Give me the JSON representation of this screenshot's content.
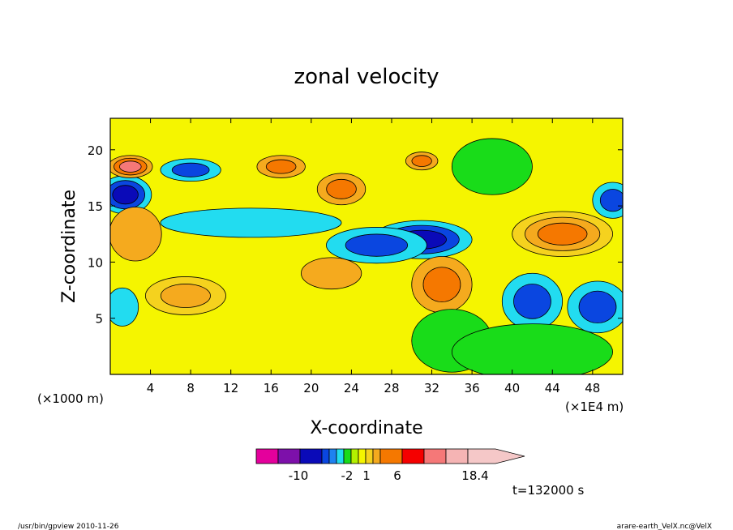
{
  "chart_data": {
    "type": "heatmap",
    "title": "zonal velocity",
    "xlabel": "X-coordinate",
    "ylabel": "Z-coordinate",
    "x_unit_left": "(×1000 m)",
    "x_unit_right": "(×1E4 m)",
    "x_ticks": [
      4,
      8,
      12,
      16,
      20,
      24,
      28,
      32,
      36,
      40,
      44,
      48
    ],
    "y_ticks": [
      5,
      10,
      15,
      20
    ],
    "xlim": [
      0,
      51
    ],
    "ylim": [
      0,
      22.8
    ],
    "time_label": "t=132000 s",
    "colorbar": {
      "colors": [
        "#e4009c",
        "#7d10aa",
        "#0a0ab8",
        "#0a46e0",
        "#1e82f0",
        "#22dcf0",
        "#19dc19",
        "#b4f000",
        "#f5f500",
        "#f5d21e",
        "#f5aa1e",
        "#f57800",
        "#f50000",
        "#f57878",
        "#f5b4b4",
        "#f5c8c8"
      ],
      "tick_labels": [
        "-10",
        "-2",
        "1",
        "6",
        "18.4"
      ]
    },
    "field": {
      "background": "#f5f500",
      "blobs": [
        {
          "x": 1.5,
          "z": 16.0,
          "rx": 2.6,
          "rz": 1.7,
          "colors": [
            "#22dcf0",
            "#0a46e0",
            "#0a0ab8"
          ]
        },
        {
          "x": 2.0,
          "z": 18.5,
          "rx": 2.2,
          "rz": 1.0,
          "colors": [
            "#f5aa1e",
            "#f57800",
            "#f57878"
          ]
        },
        {
          "x": 8.0,
          "z": 18.2,
          "rx": 3.0,
          "rz": 1.0,
          "colors": [
            "#22dcf0",
            "#0a46e0"
          ]
        },
        {
          "x": 7.5,
          "z": 7.0,
          "rx": 4.0,
          "rz": 1.7,
          "colors": [
            "#f5d21e",
            "#f5aa1e"
          ]
        },
        {
          "x": 2.5,
          "z": 12.5,
          "rx": 2.6,
          "rz": 2.4,
          "colors": [
            "#f5aa1e"
          ]
        },
        {
          "x": 1.2,
          "z": 6.0,
          "rx": 1.6,
          "rz": 1.7,
          "colors": [
            "#22dcf0"
          ]
        },
        {
          "x": 17.0,
          "z": 18.5,
          "rx": 2.4,
          "rz": 1.0,
          "colors": [
            "#f5aa1e",
            "#f57800"
          ]
        },
        {
          "x": 23.0,
          "z": 16.5,
          "rx": 2.4,
          "rz": 1.4,
          "colors": [
            "#f5aa1e",
            "#f57800"
          ]
        },
        {
          "x": 31.0,
          "z": 12.0,
          "rx": 5.0,
          "rz": 1.7,
          "colors": [
            "#22dcf0",
            "#0a46e0",
            "#0a0ab8"
          ]
        },
        {
          "x": 45.0,
          "z": 12.5,
          "rx": 5.0,
          "rz": 2.0,
          "colors": [
            "#f5d21e",
            "#f5aa1e",
            "#f57800"
          ]
        },
        {
          "x": 48.5,
          "z": 6.0,
          "rx": 3.0,
          "rz": 2.3,
          "colors": [
            "#22dcf0",
            "#0a46e0"
          ]
        },
        {
          "x": 50.0,
          "z": 15.5,
          "rx": 2.0,
          "rz": 1.6,
          "colors": [
            "#22dcf0",
            "#0a46e0"
          ]
        },
        {
          "x": 33.0,
          "z": 8.0,
          "rx": 3.0,
          "rz": 2.5,
          "colors": [
            "#f5aa1e",
            "#f57800"
          ]
        },
        {
          "x": 22.0,
          "z": 9.0,
          "rx": 3.0,
          "rz": 1.4,
          "colors": [
            "#f5aa1e"
          ]
        },
        {
          "x": 26.5,
          "z": 11.5,
          "rx": 5.0,
          "rz": 1.6,
          "colors": [
            "#22dcf0",
            "#0a46e0"
          ]
        },
        {
          "x": 38.0,
          "z": 18.5,
          "rx": 4.0,
          "rz": 2.5,
          "colors": [
            "#19dc19"
          ]
        },
        {
          "x": 14.0,
          "z": 13.5,
          "rx": 9.0,
          "rz": 1.3,
          "colors": [
            "#22dcf0"
          ]
        },
        {
          "x": 42.0,
          "z": 6.5,
          "rx": 3.0,
          "rz": 2.5,
          "colors": [
            "#22dcf0",
            "#0a46e0"
          ]
        },
        {
          "x": 31.0,
          "z": 19.0,
          "rx": 1.6,
          "rz": 0.8,
          "colors": [
            "#f5aa1e",
            "#f57800"
          ]
        },
        {
          "x": 34.0,
          "z": 3.0,
          "rx": 4.0,
          "rz": 2.8,
          "colors": [
            "#19dc19"
          ]
        },
        {
          "x": 42.0,
          "z": 2.0,
          "rx": 8.0,
          "rz": 2.5,
          "colors": [
            "#19dc19"
          ]
        }
      ]
    }
  },
  "footer": {
    "left": "/usr/bin/gpview   2010-11-26",
    "right": "arare-earth_VelX.nc@VelX"
  }
}
